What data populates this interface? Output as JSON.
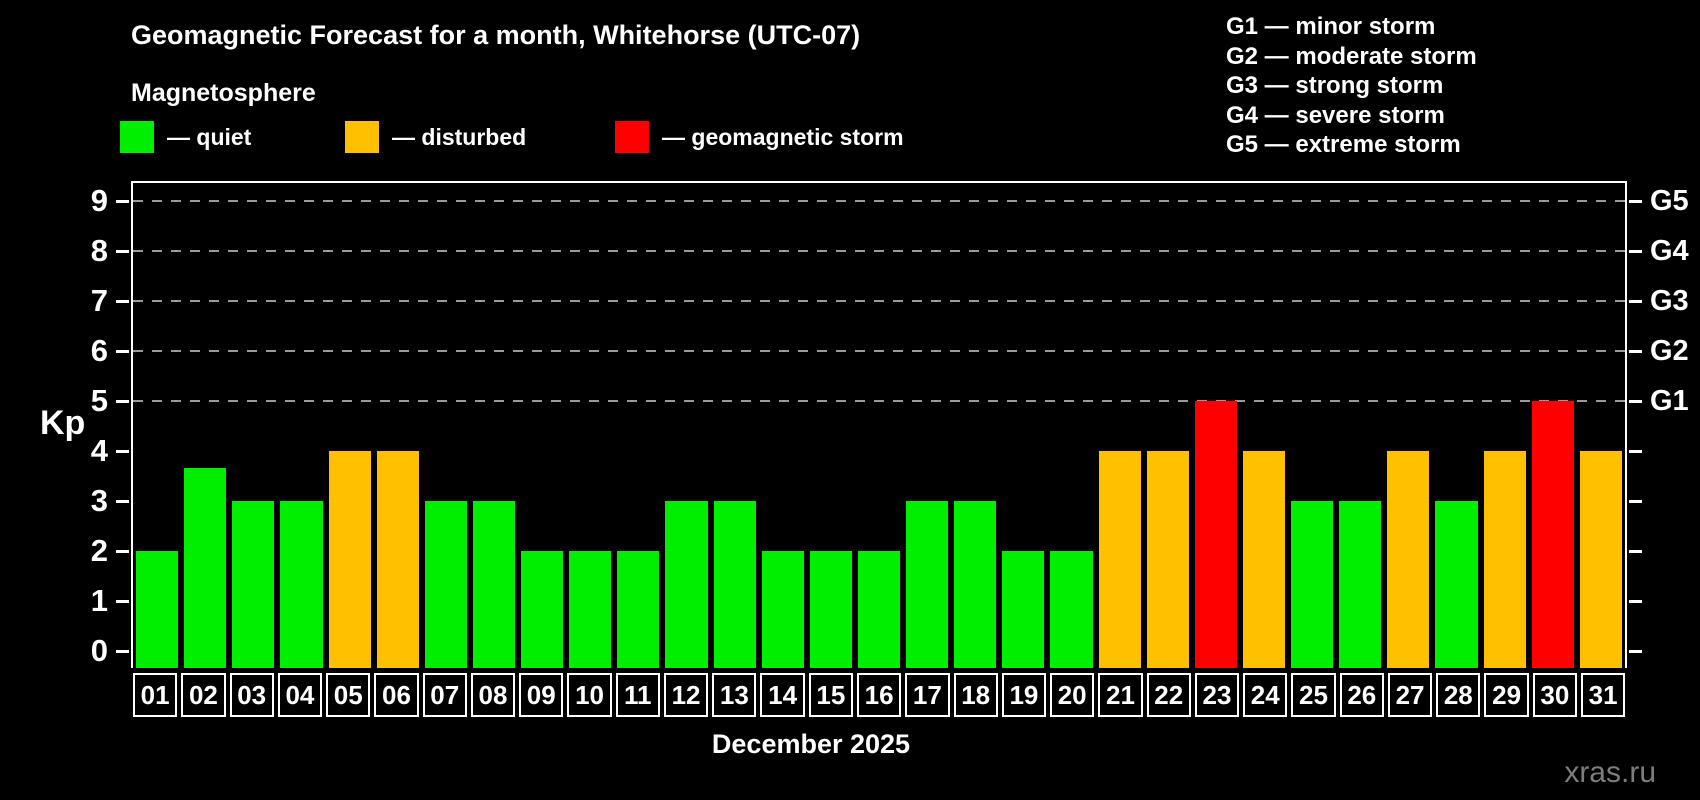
{
  "title": "Geomagnetic Forecast for a month, Whitehorse (UTC-07)",
  "subtitle": "Magnetosphere",
  "watermark": "xras.ru",
  "legend": [
    {
      "label": "— quiet",
      "status": "quiet"
    },
    {
      "label": "— disturbed",
      "status": "disturbed"
    },
    {
      "label": "— geomagnetic storm",
      "status": "storm"
    }
  ],
  "g_legend": [
    "G1 — minor storm",
    "G2 — moderate storm",
    "G3 — strong storm",
    "G4 — severe storm",
    "G5 — extreme storm"
  ],
  "colors": {
    "quiet": "#00ef00",
    "disturbed": "#ffc000",
    "storm": "#ff0000",
    "axis": "#ffffff",
    "grid": "#9a9a9a",
    "watermark": "#7d7d7d",
    "background": "#000000"
  },
  "chart_data": {
    "type": "bar",
    "title": "Geomagnetic Forecast for a month, Whitehorse (UTC-07)",
    "xlabel": "December 2025",
    "ylabel": "Kp",
    "ylim": [
      0,
      9
    ],
    "grid": "dashed horizontal lines at Kp 5-9 only",
    "legend_position": "top",
    "yticks_left": [
      0,
      1,
      2,
      3,
      4,
      5,
      6,
      7,
      8,
      9
    ],
    "right_scale": [
      {
        "kp": 5,
        "label": "G1"
      },
      {
        "kp": 6,
        "label": "G2"
      },
      {
        "kp": 7,
        "label": "G3"
      },
      {
        "kp": 8,
        "label": "G4"
      },
      {
        "kp": 9,
        "label": "G5"
      }
    ],
    "gridlines_at": [
      5,
      6,
      7,
      8,
      9
    ],
    "categories": [
      "01",
      "02",
      "03",
      "04",
      "05",
      "06",
      "07",
      "08",
      "09",
      "10",
      "11",
      "12",
      "13",
      "14",
      "15",
      "16",
      "17",
      "18",
      "19",
      "20",
      "21",
      "22",
      "23",
      "24",
      "25",
      "26",
      "27",
      "28",
      "29",
      "30",
      "31"
    ],
    "values": [
      2,
      3.67,
      3,
      3,
      4,
      4,
      3,
      3,
      2,
      2,
      2,
      3,
      3,
      2,
      2,
      2,
      3,
      3,
      2,
      2,
      4,
      4,
      5,
      4,
      3,
      3,
      4,
      3,
      4,
      5,
      4
    ],
    "statuses": [
      "quiet",
      "quiet",
      "quiet",
      "quiet",
      "disturbed",
      "disturbed",
      "quiet",
      "quiet",
      "quiet",
      "quiet",
      "quiet",
      "quiet",
      "quiet",
      "quiet",
      "quiet",
      "quiet",
      "quiet",
      "quiet",
      "quiet",
      "quiet",
      "disturbed",
      "disturbed",
      "storm",
      "disturbed",
      "quiet",
      "quiet",
      "disturbed",
      "quiet",
      "disturbed",
      "storm",
      "disturbed"
    ]
  }
}
